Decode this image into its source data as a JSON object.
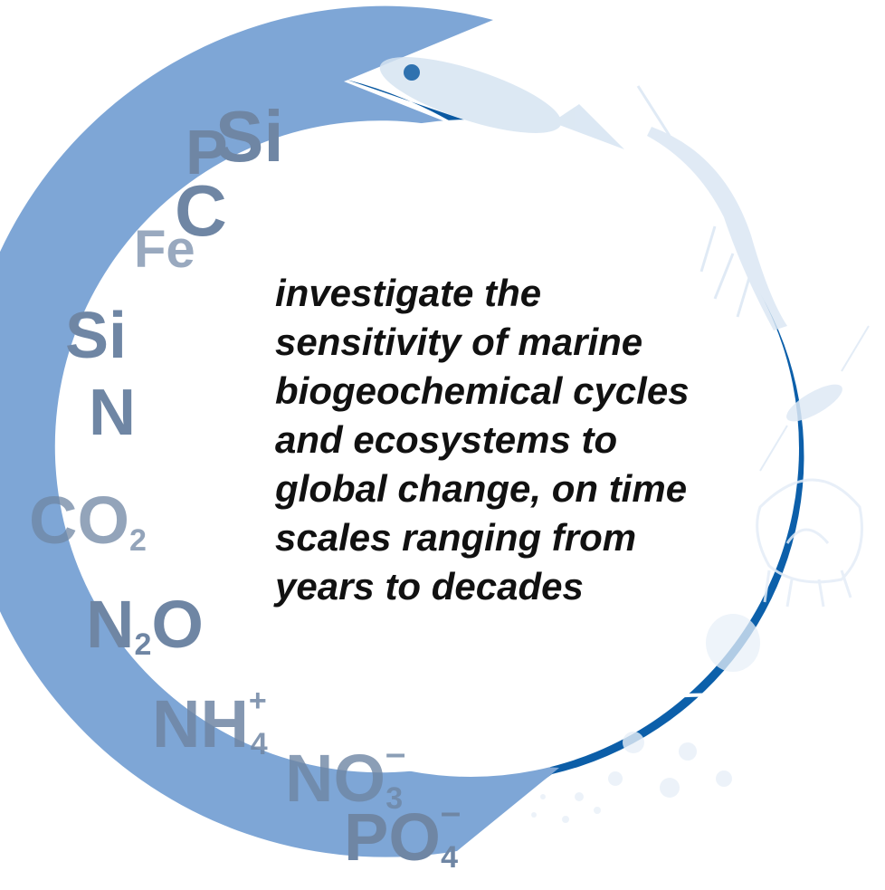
{
  "colors": {
    "left_ring": "#7ea6d6",
    "right_ring": "#0f6fc2",
    "right_ring_dark": "#0b5fa8",
    "chem_text": "#6f86a4",
    "center_fill": "#ffffff",
    "center_text": "#111111"
  },
  "center": {
    "lines": [
      "investigate the",
      "sensitivity of marine",
      "biogeochemical cycles",
      "and ecosystems to",
      "global change, on time",
      "scales ranging from",
      "years to decades"
    ]
  },
  "chemicals": [
    {
      "id": "si-top",
      "text": "Si"
    },
    {
      "id": "p",
      "text": "P"
    },
    {
      "id": "c",
      "text": "C"
    },
    {
      "id": "fe",
      "text": "Fe"
    },
    {
      "id": "si-mid",
      "text": "Si"
    },
    {
      "id": "n",
      "text": "N"
    },
    {
      "id": "co2",
      "text": "CO",
      "sub": "2"
    },
    {
      "id": "n2o-n",
      "text": "N",
      "sub": "2",
      "after": "O"
    },
    {
      "id": "nh4",
      "text": "NH",
      "sub": "4",
      "sup": "+"
    },
    {
      "id": "no3",
      "text": "NO",
      "sub": "3",
      "sup": "–"
    },
    {
      "id": "po4",
      "text": "PO",
      "sub": "4",
      "sup": "–"
    }
  ],
  "organism_icons": [
    "fish-icon",
    "krill-icon",
    "copepod-icon",
    "jellyfish-icon",
    "medusa-icon",
    "phytoplankton-icon"
  ]
}
